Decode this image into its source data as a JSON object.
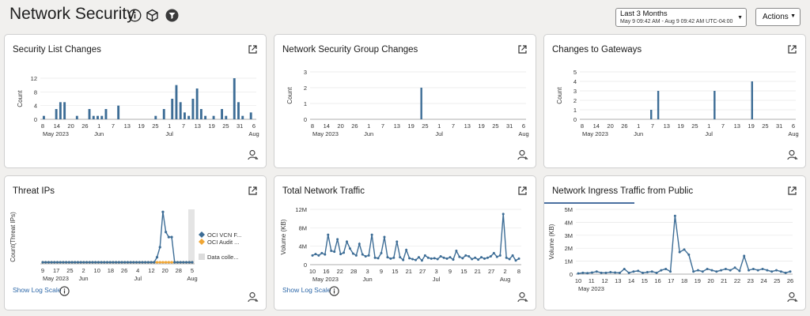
{
  "header": {
    "title": "Network Security",
    "date_range": {
      "label": "Last 3 Months",
      "detail": "May 9 09:42 AM - Aug 9 09:42 AM UTC-04:00"
    },
    "actions_label": "Actions",
    "icons": [
      "info-icon",
      "cube-icon",
      "filter-icon"
    ]
  },
  "cards": {
    "security_list_changes": {
      "title": "Security List Changes"
    },
    "nsg_changes": {
      "title": "Network Security Group Changes"
    },
    "gateway_changes": {
      "title": "Changes to Gateways"
    },
    "threat_ips": {
      "title": "Threat IPs",
      "log_scale": "Show Log Scale",
      "legend": [
        "OCI VCN F...",
        "OCI Audit ...",
        "Data colle..."
      ]
    },
    "total_traffic": {
      "title": "Total Network Traffic",
      "log_scale": "Show Log Scale"
    },
    "ingress_traffic": {
      "title": "Network Ingress Traffic from Public"
    }
  },
  "colors": {
    "bar": "#3d6d96",
    "line": "#3d6d96",
    "audit": "#f0a634",
    "link": "#2c67a8"
  },
  "chart_data": [
    {
      "id": "security_list_changes",
      "type": "bar",
      "ylabel": "Count",
      "ylim": [
        0,
        12
      ],
      "yticks": [
        "12",
        "8",
        "4",
        "0"
      ],
      "xticks": [
        "8",
        "14",
        "20",
        "26",
        "1",
        "7",
        "13",
        "19",
        "25",
        "1",
        "7",
        "13",
        "19",
        "25",
        "31",
        "6"
      ],
      "month_labels": [
        "May 2023",
        "Jun",
        "Jul",
        "Aug"
      ],
      "values": [
        1,
        0,
        0,
        3,
        5,
        5,
        0,
        0,
        1,
        0,
        0,
        3,
        1,
        1,
        1,
        3,
        0,
        0,
        4,
        0,
        0,
        0,
        0,
        0,
        0,
        0,
        0,
        1,
        0,
        3,
        0,
        6,
        10,
        5,
        2,
        1,
        6,
        9,
        3,
        1,
        0,
        1,
        0,
        3,
        1,
        0,
        12,
        5,
        1,
        0,
        2
      ]
    },
    {
      "id": "nsg_changes",
      "type": "bar",
      "ylabel": "Count",
      "ylim": [
        0,
        3
      ],
      "yticks": [
        "3",
        "2",
        "1",
        "0"
      ],
      "xticks": [
        "8",
        "14",
        "20",
        "26",
        "1",
        "7",
        "13",
        "19",
        "25",
        "1",
        "7",
        "13",
        "19",
        "25",
        "31",
        "6"
      ],
      "month_labels": [
        "May 2023",
        "Jun",
        "Jul",
        "Aug"
      ],
      "bars": [
        {
          "date": "Jun 23",
          "value": 2
        }
      ]
    },
    {
      "id": "gateway_changes",
      "type": "bar",
      "ylabel": "Count",
      "ylim": [
        0,
        5
      ],
      "yticks": [
        "5",
        "4",
        "3",
        "2",
        "1",
        "0"
      ],
      "xticks": [
        "8",
        "14",
        "20",
        "26",
        "1",
        "7",
        "13",
        "19",
        "25",
        "1",
        "7",
        "13",
        "19",
        "25",
        "31",
        "6"
      ],
      "month_labels": [
        "May 2023",
        "Jun",
        "Jul",
        "Aug"
      ],
      "bars": [
        {
          "date": "Jun 6",
          "value": 1
        },
        {
          "date": "Jun 9",
          "value": 3
        },
        {
          "date": "Jul 3",
          "value": 3
        },
        {
          "date": "Jul 19",
          "value": 4
        }
      ]
    },
    {
      "id": "threat_ips",
      "type": "line",
      "ylabel": "Count(Threat IPs)",
      "xticks": [
        "9",
        "17",
        "25",
        "2",
        "10",
        "18",
        "26",
        "4",
        "12",
        "20",
        "28",
        "5"
      ],
      "month_labels": [
        "May 2023",
        "Jun",
        "Jul",
        "Aug"
      ],
      "series": [
        {
          "name": "OCI VCN F...",
          "values": [
            0,
            0,
            0,
            0,
            0,
            0,
            0,
            0,
            0,
            0,
            0,
            0,
            0,
            0,
            0,
            0,
            0,
            0,
            0,
            0,
            0,
            0,
            0,
            0,
            0,
            0,
            0,
            0,
            0,
            0,
            0,
            0,
            0,
            0,
            0,
            0,
            0,
            0,
            0,
            1,
            3,
            10,
            6,
            5,
            5,
            0,
            0,
            0,
            0,
            0,
            0,
            0
          ]
        },
        {
          "name": "OCI Audit ...",
          "values": [
            0,
            0,
            0,
            0,
            0,
            0,
            0,
            0,
            0,
            0,
            0,
            0,
            0,
            0,
            0,
            0,
            0,
            0,
            0,
            0,
            0,
            0,
            0,
            0,
            0,
            0,
            0,
            0,
            0,
            0,
            0,
            0,
            0,
            0,
            0,
            0,
            0,
            0,
            0,
            0,
            0,
            0,
            0,
            0,
            0,
            0,
            0,
            0,
            0,
            0,
            0,
            0
          ]
        }
      ]
    },
    {
      "id": "total_traffic",
      "type": "line",
      "ylabel": "Volume (KB)",
      "ylim": [
        0,
        12
      ],
      "yticks": [
        "12M",
        "8M",
        "4M",
        "0"
      ],
      "xticks": [
        "10",
        "16",
        "22",
        "28",
        "3",
        "9",
        "15",
        "21",
        "27",
        "3",
        "9",
        "15",
        "21",
        "27",
        "2",
        "8"
      ],
      "month_labels": [
        "May 2023",
        "Jun",
        "Jul",
        "Aug"
      ],
      "series": [
        {
          "name": "Volume",
          "values": [
            2,
            2.3,
            2,
            2.5,
            2.2,
            6.5,
            3,
            2.8,
            5.5,
            2.3,
            2.6,
            5,
            3.5,
            2.4,
            2,
            4.5,
            2.2,
            1.8,
            2,
            6.5,
            1.5,
            1.4,
            2.5,
            6,
            1.6,
            1.3,
            1.5,
            5,
            1.6,
            1,
            3.2,
            1.4,
            1.2,
            1,
            1.6,
            0.9,
            2,
            1.5,
            1.3,
            1.4,
            1.2,
            1.8,
            1.5,
            1.3,
            1.6,
            1.1,
            3,
            1.7,
            1.4,
            2,
            1.8,
            1.2,
            1.5,
            1.1,
            1.6,
            1.3,
            1.5,
            1.8,
            2.5,
            1.7,
            2,
            11,
            1.5,
            1.2,
            2,
            0.9,
            1.3
          ]
        }
      ]
    },
    {
      "id": "ingress_traffic",
      "type": "line",
      "ylabel": "Volume (KB)",
      "ylim": [
        0,
        5
      ],
      "yticks": [
        "5M",
        "4M",
        "3M",
        "2M",
        "1M",
        "0"
      ],
      "xticks": [
        "10",
        "11",
        "12",
        "13",
        "14",
        "15",
        "16",
        "17",
        "18",
        "19",
        "20",
        "21",
        "22",
        "23",
        "24",
        "25",
        "26"
      ],
      "month_labels": [
        "May 2023"
      ],
      "series": [
        {
          "name": "Volume",
          "values": [
            0.05,
            0.1,
            0.08,
            0.12,
            0.2,
            0.1,
            0.1,
            0.15,
            0.12,
            0.1,
            0.4,
            0.1,
            0.2,
            0.25,
            0.1,
            0.15,
            0.2,
            0.1,
            0.3,
            0.4,
            0.2,
            4.5,
            1.7,
            1.9,
            1.5,
            0.2,
            0.3,
            0.2,
            0.4,
            0.3,
            0.2,
            0.3,
            0.4,
            0.3,
            0.5,
            0.25,
            1.4,
            0.3,
            0.4,
            0.3,
            0.4,
            0.3,
            0.2,
            0.3,
            0.2,
            0.1,
            0.2
          ]
        }
      ]
    }
  ]
}
